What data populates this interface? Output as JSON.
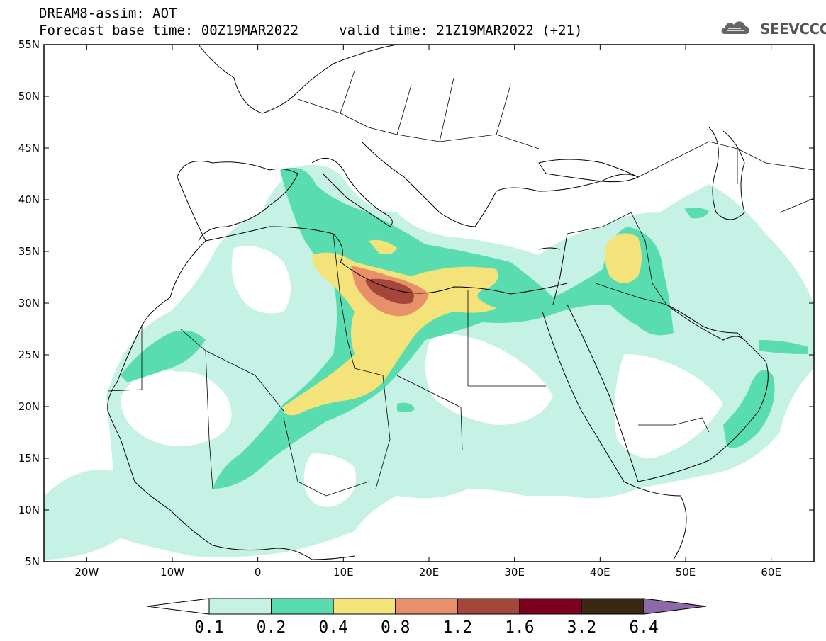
{
  "header": {
    "line1": "DREAM8-assim: AOT",
    "line2": "Forecast base time: 00Z19MAR2022     valid time: 21Z19MAR2022 (+21)",
    "logo_text": "SEEVCCC"
  },
  "map": {
    "lat_labels": [
      "55N",
      "50N",
      "45N",
      "40N",
      "35N",
      "30N",
      "25N",
      "20N",
      "15N",
      "10N",
      "5N"
    ],
    "lon_labels": [
      "20W",
      "10W",
      "0",
      "10E",
      "20E",
      "30E",
      "40E",
      "50E",
      "60E"
    ],
    "lat_range": [
      5,
      55
    ],
    "lon_range": [
      -25,
      65
    ]
  },
  "colorbar": {
    "labels": [
      "0.1",
      "0.2",
      "0.4",
      "0.8",
      "1.2",
      "1.6",
      "3.2",
      "6.4"
    ],
    "colors": [
      "#ffffff",
      "#c6f2e6",
      "#58dcb0",
      "#f4e27a",
      "#e8906a",
      "#a4473a",
      "#7e0021",
      "#3a2815",
      "#8d69a8"
    ]
  }
}
